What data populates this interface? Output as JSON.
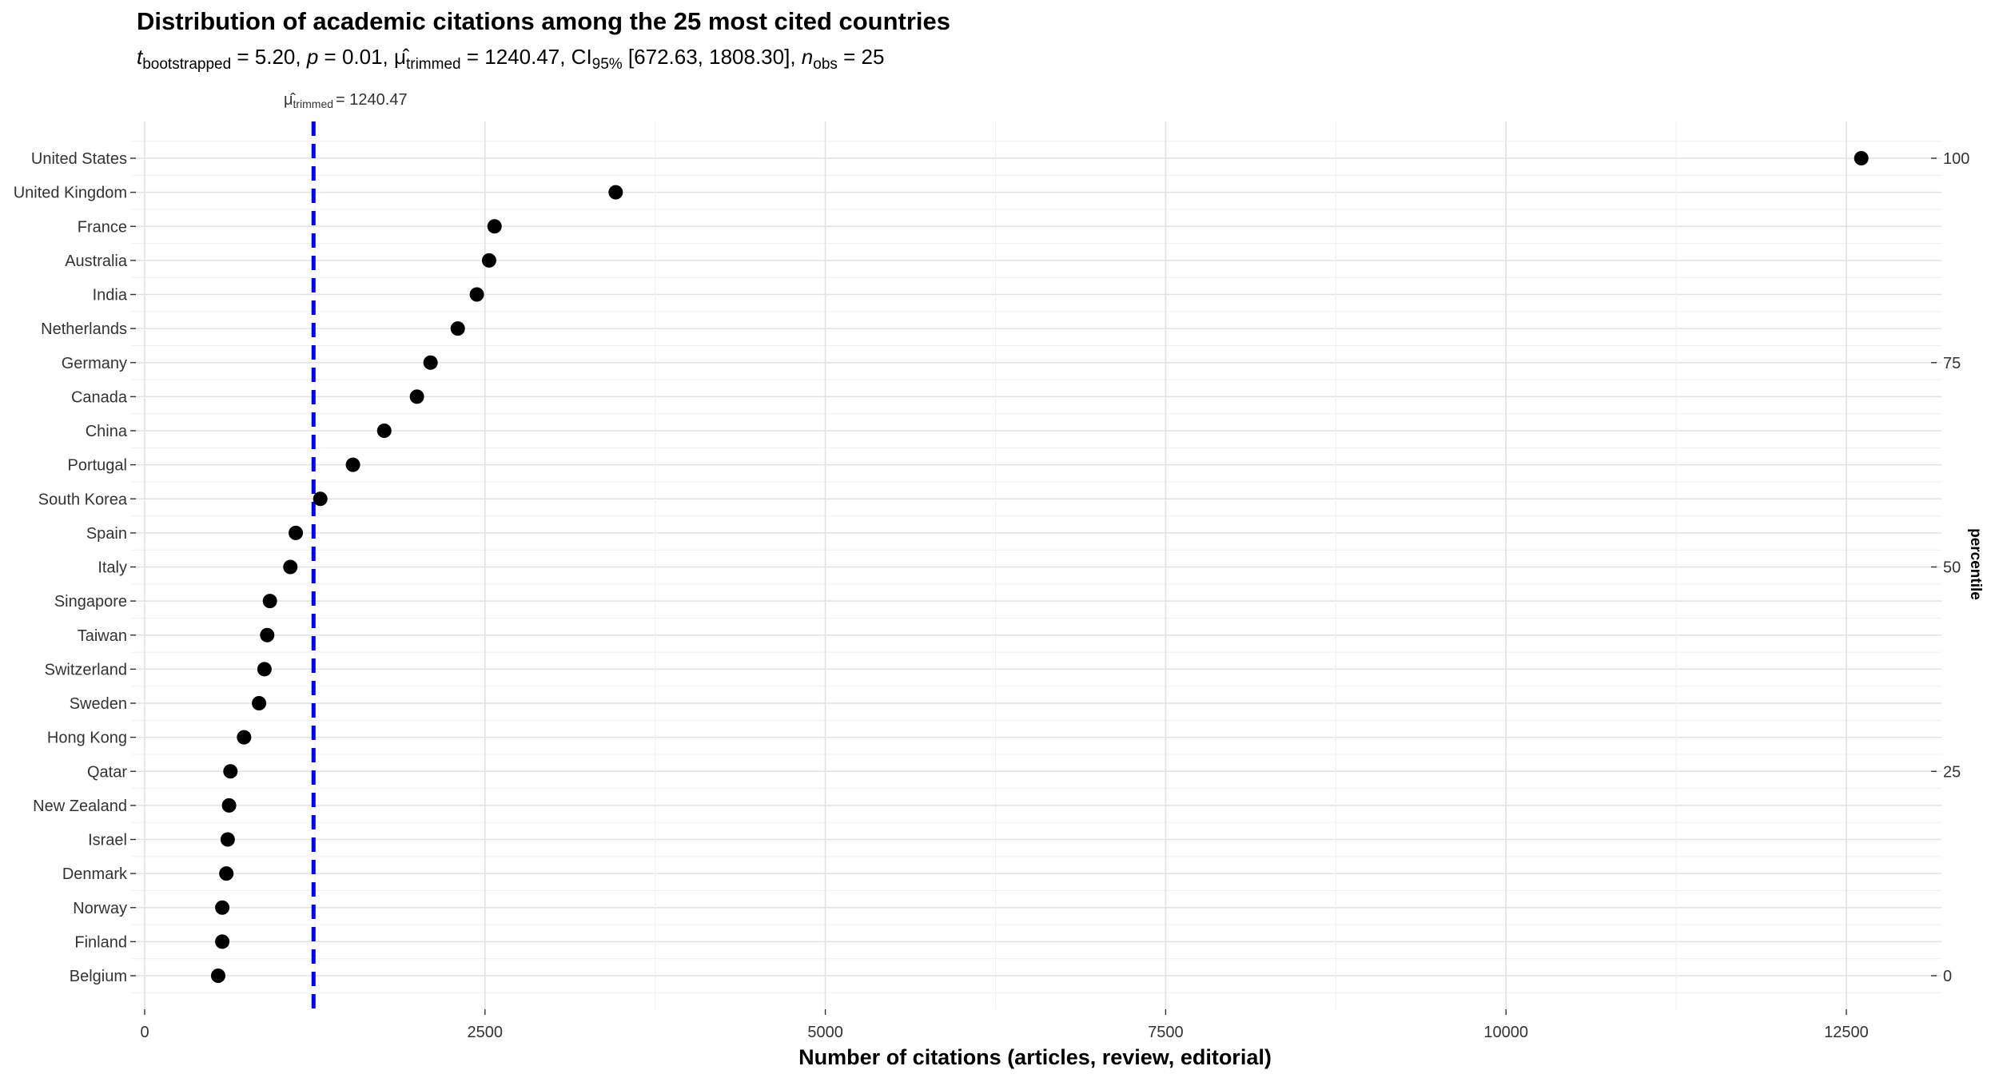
{
  "chart_data": {
    "type": "scatter",
    "title": "Distribution of academic citations among the 25 most cited countries",
    "subtitle": {
      "t_label": "t",
      "t_sub": "bootstrapped",
      "t_val": " = 5.20, ",
      "p_label": "p",
      "p_val": " = 0.01, ",
      "mu_sub": "trimmed",
      "mu_val": " = 1240.47, CI",
      "ci_sub": "95%",
      "ci_val": " [672.63, 1808.30], ",
      "n_label": "n",
      "n_sub": "obs",
      "n_val": " = 25"
    },
    "mean_line": {
      "value": 1240.47,
      "label_sub": "trimmed",
      "label_val": "= 1240.47",
      "color": "#0000ff"
    },
    "xlabel": "Number of citations (articles, review, editorial)",
    "ylabel_right": "percentile",
    "xlim": [
      -100,
      13200
    ],
    "x_ticks": [
      0,
      2500,
      5000,
      7500,
      10000,
      12500
    ],
    "x_tick_labels": [
      "0",
      "2500",
      "5000",
      "7500",
      "10000",
      "12500"
    ],
    "right_ticks": [
      0,
      25,
      50,
      75,
      100
    ],
    "right_tick_labels": [
      "0",
      "25",
      "50",
      "75",
      "100"
    ],
    "grid": true,
    "point_color": "#000000",
    "categories": [
      "United States",
      "United Kingdom",
      "France",
      "Australia",
      "India",
      "Netherlands",
      "Germany",
      "Canada",
      "China",
      "Portugal",
      "South Korea",
      "Spain",
      "Italy",
      "Singapore",
      "Taiwan",
      "Switzerland",
      "Sweden",
      "Hong Kong",
      "Qatar",
      "New Zealand",
      "Israel",
      "Denmark",
      "Norway",
      "Finland",
      "Belgium"
    ],
    "values": [
      12610,
      3460,
      2570,
      2530,
      2440,
      2300,
      2100,
      2000,
      1760,
      1530,
      1290,
      1110,
      1070,
      920,
      900,
      880,
      840,
      730,
      630,
      620,
      610,
      600,
      570,
      570,
      540
    ]
  }
}
